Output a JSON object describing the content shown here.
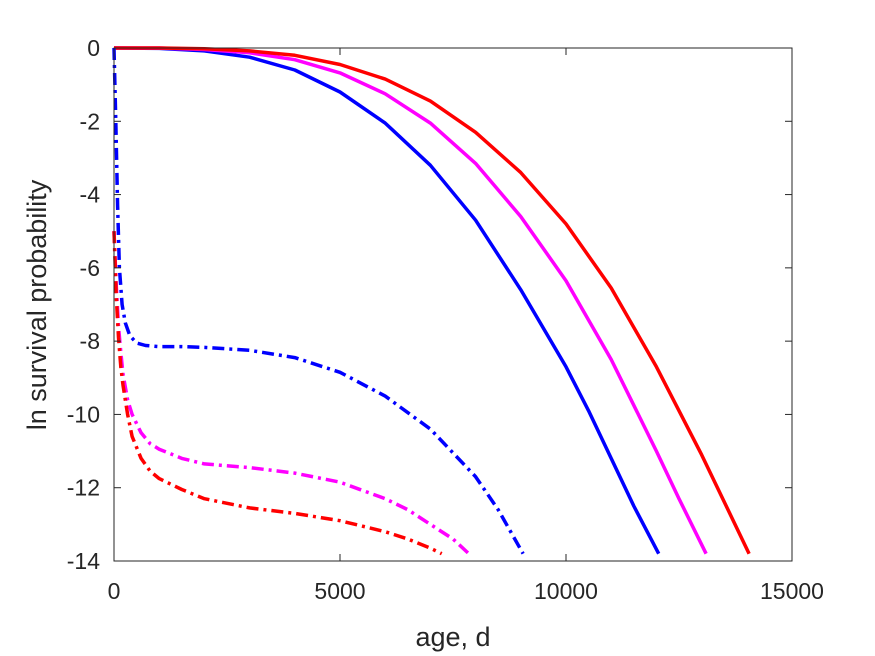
{
  "chart_data": {
    "type": "line",
    "title": "",
    "xlabel": "age, d",
    "ylabel": "ln survival probability",
    "xlim": [
      0,
      15000
    ],
    "ylim": [
      -14,
      0
    ],
    "x_ticks": [
      0,
      5000,
      10000,
      15000
    ],
    "y_ticks": [
      0,
      -2,
      -4,
      -6,
      -8,
      -10,
      -12,
      -14
    ],
    "x_tick_labels": [
      "0",
      "5000",
      "10000",
      "15000"
    ],
    "y_tick_labels": [
      "0",
      "-2",
      "-4",
      "-6",
      "-8",
      "-10",
      "-12",
      "-14"
    ],
    "grid": false,
    "box": true,
    "series": [
      {
        "color": "#0000ff",
        "style": "solid",
        "x": [
          0,
          1000,
          2000,
          3000,
          4000,
          5000,
          6000,
          7000,
          8000,
          9000,
          10000,
          10500,
          11000,
          11500,
          12050
        ],
        "y": [
          0,
          -0.01,
          -0.08,
          -0.25,
          -0.6,
          -1.2,
          -2.05,
          -3.2,
          -4.7,
          -6.6,
          -8.7,
          -9.9,
          -11.2,
          -12.5,
          -13.8
        ]
      },
      {
        "color": "#ff00ff",
        "style": "solid",
        "x": [
          0,
          1000,
          2000,
          3000,
          4000,
          5000,
          6000,
          7000,
          8000,
          9000,
          10000,
          11000,
          12000,
          12500,
          13100
        ],
        "y": [
          0,
          0,
          -0.04,
          -0.13,
          -0.32,
          -0.68,
          -1.25,
          -2.05,
          -3.15,
          -4.6,
          -6.35,
          -8.5,
          -11.0,
          -12.3,
          -13.8
        ]
      },
      {
        "color": "#ff0000",
        "style": "solid",
        "x": [
          0,
          1000,
          2000,
          3000,
          4000,
          5000,
          6000,
          7000,
          8000,
          9000,
          10000,
          11000,
          12000,
          13000,
          14050
        ],
        "y": [
          0,
          0,
          -0.02,
          -0.08,
          -0.2,
          -0.45,
          -0.85,
          -1.45,
          -2.3,
          -3.4,
          -4.8,
          -6.55,
          -8.7,
          -11.1,
          -13.8
        ]
      },
      {
        "color": "#0000ff",
        "style": "dashdot",
        "x": [
          0,
          40,
          80,
          120,
          180,
          250,
          350,
          500,
          700,
          1000,
          1500,
          2000,
          3000,
          4000,
          5000,
          6000,
          7000,
          8000,
          8500,
          9050
        ],
        "y": [
          0,
          -2.0,
          -4.3,
          -6.0,
          -7.0,
          -7.5,
          -7.85,
          -8.05,
          -8.12,
          -8.15,
          -8.15,
          -8.17,
          -8.25,
          -8.45,
          -8.85,
          -9.5,
          -10.4,
          -11.7,
          -12.6,
          -13.8
        ]
      },
      {
        "color": "#ff00ff",
        "style": "dashdot",
        "x": [
          0,
          50,
          100,
          150,
          200,
          300,
          400,
          600,
          800,
          1000,
          1500,
          2000,
          3000,
          4000,
          5000,
          6000,
          6500,
          7000,
          7500,
          7850
        ],
        "y": [
          -5.0,
          -6.5,
          -7.6,
          -8.3,
          -8.9,
          -9.6,
          -10.0,
          -10.5,
          -10.8,
          -10.95,
          -11.2,
          -11.35,
          -11.45,
          -11.6,
          -11.85,
          -12.3,
          -12.6,
          -13.0,
          -13.4,
          -13.8
        ]
      },
      {
        "color": "#ff0000",
        "style": "dashdot",
        "x": [
          0,
          50,
          100,
          150,
          200,
          300,
          400,
          600,
          800,
          1000,
          1500,
          2000,
          3000,
          4000,
          5000,
          6000,
          6500,
          7000,
          7250
        ],
        "y": [
          -5.0,
          -6.8,
          -7.9,
          -8.7,
          -9.2,
          -10.0,
          -10.6,
          -11.2,
          -11.55,
          -11.75,
          -12.05,
          -12.3,
          -12.55,
          -12.7,
          -12.9,
          -13.2,
          -13.4,
          -13.65,
          -13.8
        ]
      }
    ]
  }
}
